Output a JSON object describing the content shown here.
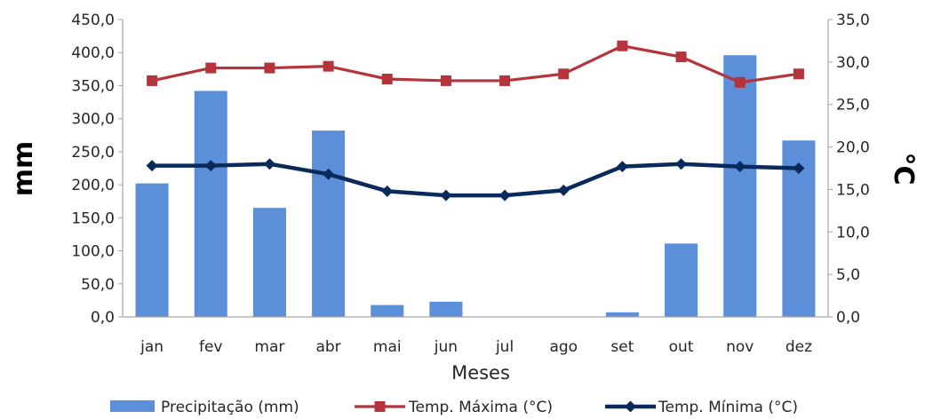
{
  "chart_data": {
    "type": "bar-line-combo",
    "categories": [
      "jan",
      "fev",
      "mar",
      "abr",
      "mai",
      "jun",
      "jul",
      "ago",
      "set",
      "out",
      "nov",
      "dez"
    ],
    "xlabel": "Meses",
    "ylabel_left": "mm",
    "ylabel_right": "°C",
    "ylim_left": [
      0,
      450
    ],
    "ylim_right": [
      0,
      35
    ],
    "yticks_left": [
      "0,0",
      "50,0",
      "100,0",
      "150,0",
      "200,0",
      "250,0",
      "300,0",
      "350,0",
      "400,0",
      "450,0"
    ],
    "yticks_right": [
      "0,0",
      "5,0",
      "10,0",
      "15,0",
      "20,0",
      "25,0",
      "30,0",
      "35,0"
    ],
    "grid": false,
    "legend_position": "bottom",
    "series": [
      {
        "name": "Precipitação (mm)",
        "type": "bar",
        "axis": "left",
        "color": "#5b8fd9",
        "values": [
          202,
          342,
          165,
          282,
          18,
          23,
          0,
          0,
          7,
          111,
          396,
          267
        ]
      },
      {
        "name": "Temp. Máxima (°C)",
        "type": "line",
        "axis": "right",
        "color": "#b5333a",
        "marker": "square",
        "values": [
          27.8,
          29.3,
          29.3,
          29.5,
          28.0,
          27.8,
          27.8,
          28.6,
          31.9,
          30.6,
          27.6,
          28.6
        ]
      },
      {
        "name": "Temp. Mínima (°C)",
        "type": "line",
        "axis": "right",
        "color": "#0b2a5c",
        "marker": "diamond",
        "values": [
          17.8,
          17.8,
          18.0,
          16.8,
          14.8,
          14.3,
          14.3,
          14.9,
          17.7,
          18.0,
          17.7,
          17.5
        ]
      }
    ]
  }
}
